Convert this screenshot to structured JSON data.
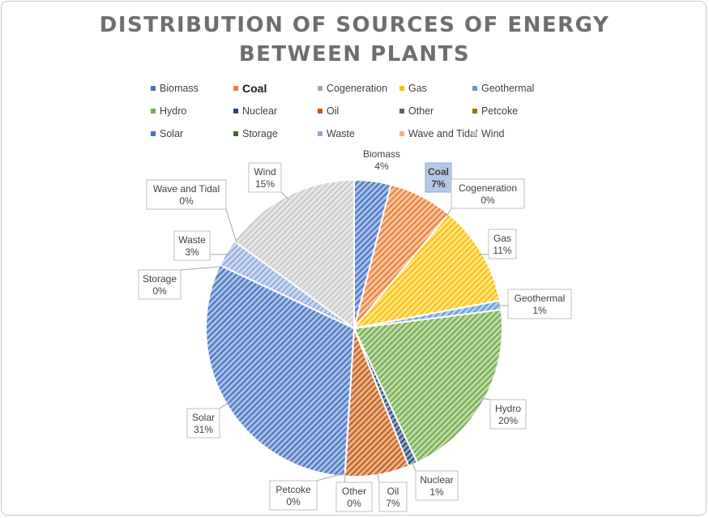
{
  "chart_data": {
    "type": "pie",
    "title_lines": [
      "DISTRIBUTION OF SOURCES OF ENERGY",
      "BETWEEN PLANTS"
    ],
    "legend_position": "top",
    "slices": [
      {
        "name": "Biomass",
        "value": 4,
        "label": "4%",
        "color": "#4472c4"
      },
      {
        "name": "Coal",
        "value": 7,
        "label": "7%",
        "color": "#ed7d31"
      },
      {
        "name": "Cogeneration",
        "value": 0,
        "label": "0%",
        "color": "#a5a5a5"
      },
      {
        "name": "Gas",
        "value": 11,
        "label": "11%",
        "color": "#ffc000"
      },
      {
        "name": "Geothermal",
        "value": 1,
        "label": "1%",
        "color": "#5b9bd5"
      },
      {
        "name": "Hydro",
        "value": 20,
        "label": "20%",
        "color": "#70ad47"
      },
      {
        "name": "Nuclear",
        "value": 1,
        "label": "1%",
        "color": "#264478"
      },
      {
        "name": "Oil",
        "value": 7,
        "label": "7%",
        "color": "#c55a11"
      },
      {
        "name": "Other",
        "value": 0,
        "label": "0%",
        "color": "#636363"
      },
      {
        "name": "Petcoke",
        "value": 0,
        "label": "0%",
        "color": "#997300"
      },
      {
        "name": "Solar",
        "value": 31,
        "label": "31%",
        "color": "#4472c4"
      },
      {
        "name": "Storage",
        "value": 0,
        "label": "0%",
        "color": "#43682b"
      },
      {
        "name": "Waste",
        "value": 3,
        "label": "3%",
        "color": "#8faadc"
      },
      {
        "name": "Wave and Tidal",
        "value": 0,
        "label": "0%",
        "color": "#f4b183"
      },
      {
        "name": "Wind",
        "value": 15,
        "label": "15%",
        "color": "#c9c9c9"
      }
    ]
  }
}
